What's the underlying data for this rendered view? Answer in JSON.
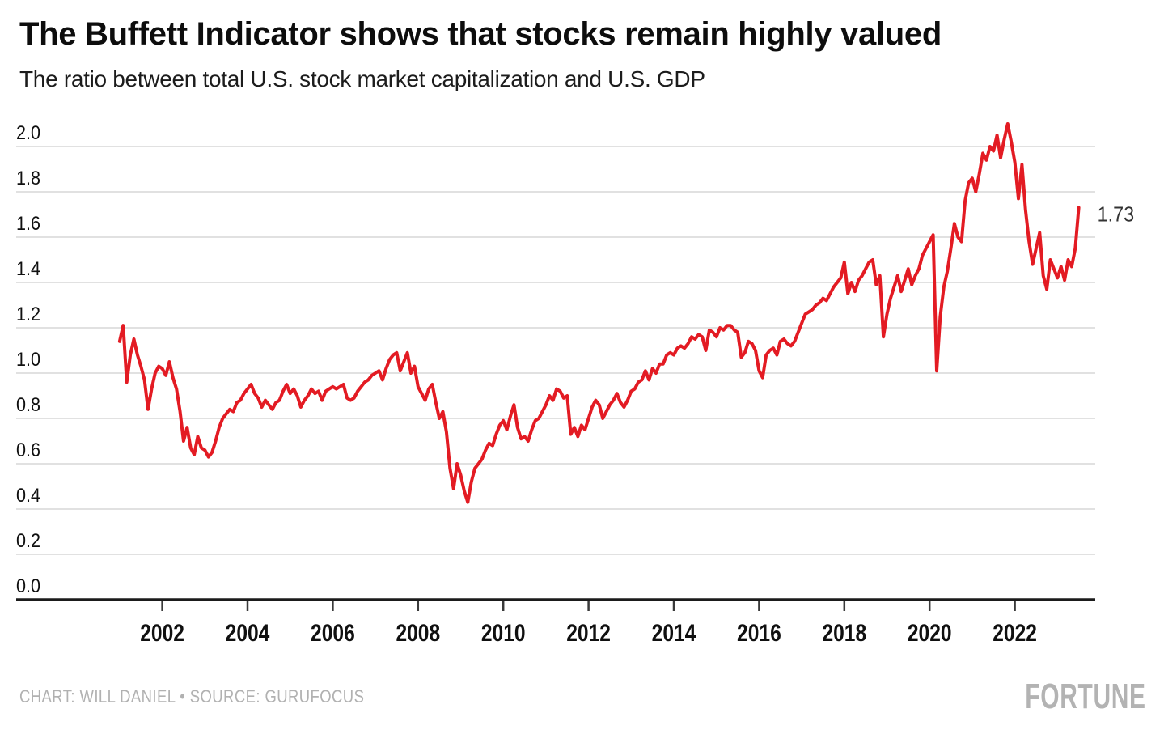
{
  "header": {
    "title": "The Buffett Indicator shows that stocks remain highly valued",
    "subtitle": "The ratio between total U.S. stock market capitalization and U.S. GDP"
  },
  "footer": {
    "credit": "CHART: WILL DANIEL • SOURCE: GURUFOCUS",
    "brand": "FORTUNE"
  },
  "colors": {
    "line_red": "#e31b23",
    "grid_gray": "#d7d7d7",
    "axis_black": "#1b1b1b",
    "tick_gray": "#3a3a3a",
    "muted_gray": "#b1b1b1",
    "text_black": "#0d0d0d"
  },
  "chart_data": {
    "type": "line",
    "title": "The Buffett Indicator shows that stocks remain highly valued",
    "subtitle": "The ratio between total U.S. stock market capitalization and U.S. GDP",
    "grid": true,
    "legend_position": "none",
    "xlabel": "",
    "ylabel": "",
    "x_range_years": [
      2000.85,
      2023.9
    ],
    "ylim": [
      0.0,
      2.15
    ],
    "x_ticks": [
      2002,
      2004,
      2006,
      2008,
      2010,
      2012,
      2014,
      2016,
      2018,
      2020,
      2022
    ],
    "y_ticks": [
      {
        "value": 2.0,
        "label": "2.0"
      },
      {
        "value": 1.8,
        "label": "1.8"
      },
      {
        "value": 1.6,
        "label": "1.6"
      },
      {
        "value": 1.4,
        "label": "1.4"
      },
      {
        "value": 1.2,
        "label": "1.2"
      },
      {
        "value": 1.0,
        "label": "1.0"
      },
      {
        "value": 0.8,
        "label": "0.8"
      },
      {
        "value": 0.6,
        "label": "0.6"
      },
      {
        "value": 0.4,
        "label": "0.4"
      },
      {
        "value": 0.2,
        "label": "0.2"
      },
      {
        "value": 0.0,
        "label": "0.0"
      }
    ],
    "end_label": {
      "text": "1.73",
      "value": 1.73,
      "year": 2023.5
    },
    "series": [
      {
        "name": "U.S. stock market cap / GDP",
        "color": "#e31b23",
        "x_start_year": 2001,
        "x_step_years": 0.0833333,
        "values": [
          1.14,
          1.21,
          0.96,
          1.08,
          1.15,
          1.08,
          1.03,
          0.97,
          0.84,
          0.93,
          1.0,
          1.03,
          1.02,
          0.99,
          1.05,
          0.98,
          0.93,
          0.83,
          0.7,
          0.76,
          0.67,
          0.64,
          0.72,
          0.67,
          0.66,
          0.63,
          0.65,
          0.7,
          0.76,
          0.8,
          0.82,
          0.84,
          0.83,
          0.87,
          0.88,
          0.91,
          0.93,
          0.95,
          0.91,
          0.89,
          0.85,
          0.88,
          0.86,
          0.84,
          0.87,
          0.88,
          0.92,
          0.95,
          0.91,
          0.93,
          0.9,
          0.85,
          0.88,
          0.9,
          0.93,
          0.91,
          0.92,
          0.88,
          0.92,
          0.93,
          0.94,
          0.93,
          0.94,
          0.95,
          0.89,
          0.88,
          0.89,
          0.92,
          0.94,
          0.96,
          0.97,
          0.99,
          1.0,
          1.01,
          0.97,
          1.02,
          1.06,
          1.08,
          1.09,
          1.01,
          1.05,
          1.09,
          1.0,
          1.03,
          0.94,
          0.91,
          0.88,
          0.93,
          0.95,
          0.87,
          0.8,
          0.83,
          0.74,
          0.58,
          0.49,
          0.6,
          0.55,
          0.48,
          0.43,
          0.52,
          0.58,
          0.6,
          0.62,
          0.66,
          0.69,
          0.68,
          0.73,
          0.77,
          0.79,
          0.75,
          0.81,
          0.86,
          0.76,
          0.71,
          0.72,
          0.7,
          0.75,
          0.79,
          0.8,
          0.83,
          0.86,
          0.9,
          0.88,
          0.93,
          0.92,
          0.89,
          0.9,
          0.73,
          0.76,
          0.72,
          0.77,
          0.75,
          0.8,
          0.85,
          0.88,
          0.86,
          0.8,
          0.83,
          0.86,
          0.88,
          0.91,
          0.87,
          0.85,
          0.88,
          0.92,
          0.93,
          0.96,
          0.97,
          1.01,
          0.97,
          1.02,
          1.0,
          1.04,
          1.04,
          1.08,
          1.09,
          1.08,
          1.11,
          1.12,
          1.11,
          1.13,
          1.16,
          1.15,
          1.17,
          1.16,
          1.1,
          1.19,
          1.18,
          1.16,
          1.2,
          1.19,
          1.21,
          1.21,
          1.19,
          1.18,
          1.07,
          1.09,
          1.14,
          1.13,
          1.1,
          1.01,
          0.98,
          1.08,
          1.1,
          1.11,
          1.08,
          1.14,
          1.15,
          1.13,
          1.12,
          1.14,
          1.18,
          1.22,
          1.26,
          1.27,
          1.28,
          1.3,
          1.31,
          1.33,
          1.32,
          1.35,
          1.38,
          1.4,
          1.42,
          1.49,
          1.35,
          1.4,
          1.36,
          1.41,
          1.43,
          1.46,
          1.49,
          1.5,
          1.39,
          1.43,
          1.16,
          1.26,
          1.33,
          1.38,
          1.43,
          1.36,
          1.41,
          1.46,
          1.39,
          1.43,
          1.46,
          1.52,
          1.55,
          1.58,
          1.61,
          1.01,
          1.25,
          1.38,
          1.45,
          1.55,
          1.66,
          1.6,
          1.58,
          1.76,
          1.84,
          1.86,
          1.8,
          1.88,
          1.97,
          1.94,
          2.0,
          1.98,
          2.05,
          1.95,
          2.03,
          2.1,
          2.02,
          1.93,
          1.77,
          1.92,
          1.72,
          1.58,
          1.48,
          1.55,
          1.62,
          1.43,
          1.37,
          1.5,
          1.46,
          1.42,
          1.47,
          1.41,
          1.5,
          1.47,
          1.55,
          1.73
        ]
      }
    ]
  }
}
